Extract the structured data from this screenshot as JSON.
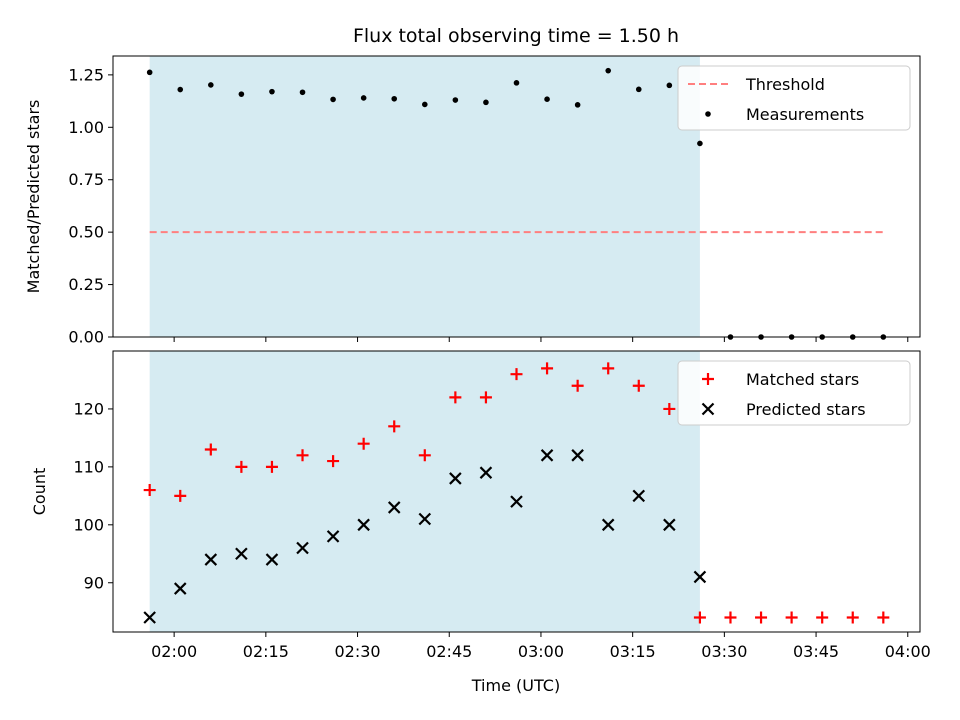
{
  "chart_data": {
    "title": "Flux total observing time = 1.50 h",
    "xlabel": "Time (UTC)",
    "x_ticks": [
      "02:00",
      "02:15",
      "02:30",
      "02:45",
      "03:00",
      "03:15",
      "03:30",
      "03:45",
      "04:00"
    ],
    "x_tick_minutes": [
      120,
      135,
      150,
      165,
      180,
      195,
      210,
      225,
      240
    ],
    "xlim": [
      "01:50",
      "04:02"
    ],
    "shaded_span": {
      "start": "01:56",
      "end": "03:26",
      "color": "#add8e6"
    },
    "times": [
      "01:56",
      "02:01",
      "02:06",
      "02:11",
      "02:16",
      "02:21",
      "02:26",
      "02:31",
      "02:36",
      "02:41",
      "02:46",
      "02:51",
      "02:56",
      "03:01",
      "03:06",
      "03:11",
      "03:16",
      "03:21",
      "03:26",
      "03:31",
      "03:36",
      "03:41",
      "03:46",
      "03:51",
      "03:56"
    ],
    "charts": [
      {
        "type": "scatter",
        "ylabel": "Matched/Predicted stars",
        "ylim": [
          0,
          1.34
        ],
        "y_ticks": [
          "0.00",
          "0.25",
          "0.50",
          "0.75",
          "1.00",
          "1.25"
        ],
        "series": [
          {
            "name": "Measurements",
            "marker": "dot",
            "color": "#000000",
            "y": [
              1.262,
              1.18,
              1.202,
              1.158,
              1.17,
              1.167,
              1.133,
              1.14,
              1.136,
              1.109,
              1.13,
              1.119,
              1.212,
              1.134,
              1.107,
              1.27,
              1.181,
              1.2,
              0.923,
              0,
              0,
              0,
              0,
              0,
              0
            ]
          },
          {
            "name": "Threshold",
            "style": "dashed-line",
            "color": "#ff7f7f",
            "value": 0.5,
            "x_range": [
              "01:56",
              "03:56"
            ]
          }
        ],
        "legend_order": [
          "Threshold",
          "Measurements"
        ],
        "legend": "upper right"
      },
      {
        "type": "scatter",
        "ylabel": "Count",
        "ylim": [
          81.5,
          130
        ],
        "y_ticks": [
          "90",
          "100",
          "110",
          "120"
        ],
        "series": [
          {
            "name": "Matched stars",
            "marker": "plus",
            "color": "#ff0000",
            "y": [
              106,
              105,
              113,
              110,
              110,
              112,
              111,
              114,
              117,
              112,
              122,
              122,
              126,
              127,
              124,
              127,
              124,
              120,
              84,
              84,
              84,
              84,
              84,
              84,
              84
            ]
          },
          {
            "name": "Predicted stars",
            "marker": "x",
            "color": "#000000",
            "y": [
              84,
              89,
              94,
              95,
              94,
              96,
              98,
              100,
              103,
              101,
              108,
              109,
              104,
              112,
              112,
              100,
              105,
              100,
              91,
              null,
              null,
              null,
              null,
              null,
              null
            ]
          }
        ],
        "legend_order": [
          "Matched stars",
          "Predicted stars"
        ],
        "legend": "upper right"
      }
    ]
  }
}
